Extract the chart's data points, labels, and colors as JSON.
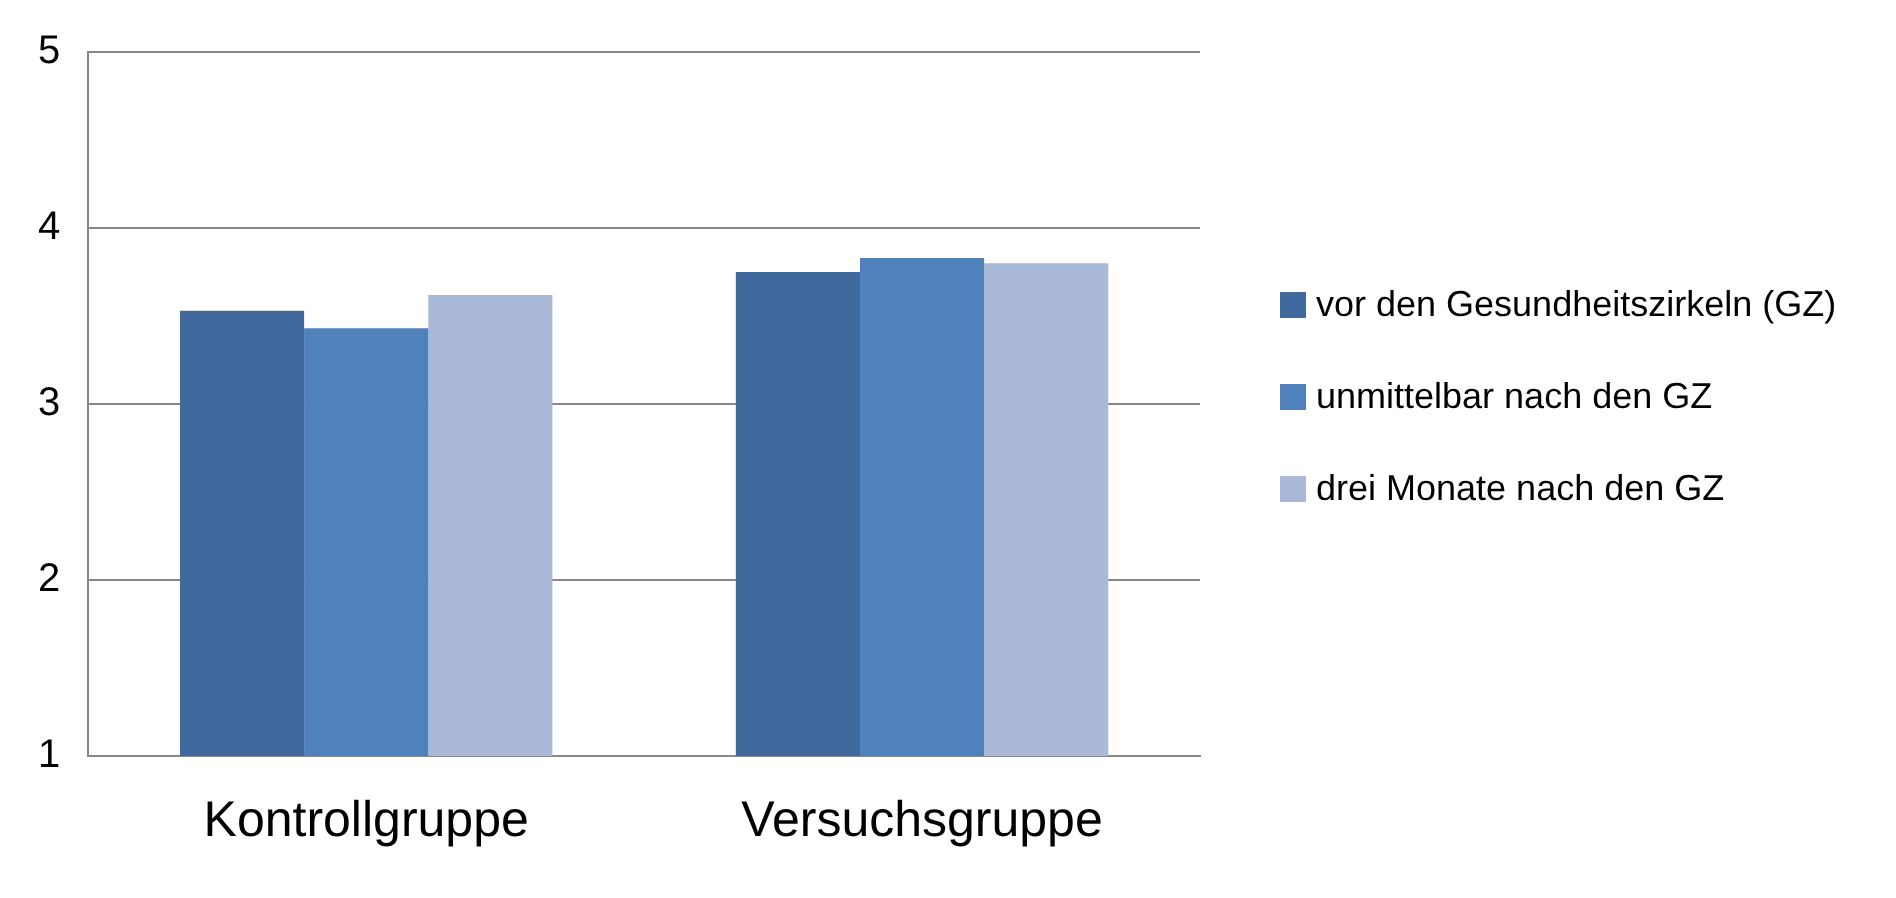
{
  "chart_data": {
    "type": "bar",
    "categories": [
      "Kontrollgruppe",
      "Versuchsgruppe"
    ],
    "series": [
      {
        "name": "vor den Gesundheitszirkeln (GZ)",
        "color": "#40699d",
        "values": [
          3.53,
          3.75
        ]
      },
      {
        "name": "unmittelbar nach den GZ",
        "color": "#4f81bd",
        "values": [
          3.43,
          3.83
        ]
      },
      {
        "name": "drei Monate nach den GZ",
        "color": "#aab9d7",
        "values": [
          3.62,
          3.8
        ]
      }
    ],
    "ylim": [
      1,
      5
    ],
    "yticks": [
      1,
      2,
      3,
      4,
      5
    ],
    "grid": "y",
    "legend": "right"
  }
}
